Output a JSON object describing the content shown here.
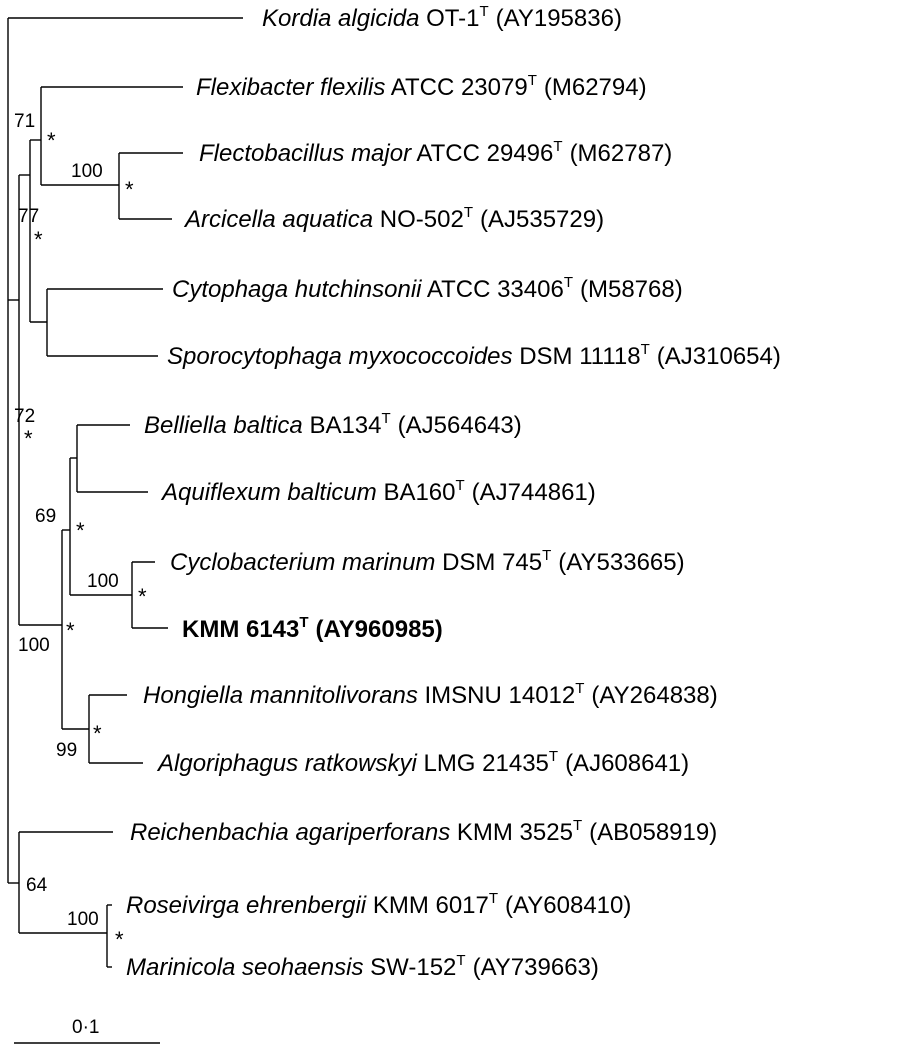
{
  "taxa": [
    {
      "name": "Kordia algicida",
      "strain": "OT-1",
      "type": "T",
      "accession": "(AY195836)"
    },
    {
      "name": "Flexibacter flexilis",
      "strain": "ATCC 23079",
      "type": "T",
      "accession": "(M62794)"
    },
    {
      "name": "Flectobacillus major",
      "strain": "ATCC 29496",
      "type": "T",
      "accession": "(M62787)"
    },
    {
      "name": "Arcicella aquatica",
      "strain": "NO-502",
      "type": "T",
      "accession": "(AJ535729)"
    },
    {
      "name": "Cytophaga hutchinsonii",
      "strain": "ATCC 33406",
      "type": "T",
      "accession": "(M58768)"
    },
    {
      "name": "Sporocytophaga myxococcoides",
      "strain": "DSM 11118",
      "type": "T",
      "accession": "(AJ310654)"
    },
    {
      "name": "Belliella baltica",
      "strain": "BA134",
      "type": "T",
      "accession": "(AJ564643)"
    },
    {
      "name": "Aquiflexum balticum",
      "strain": "BA160",
      "type": "T",
      "accession": "(AJ744861)"
    },
    {
      "name": "Cyclobacterium marinum",
      "strain": "DSM 745",
      "type": "T",
      "accession": "(AY533665)"
    },
    {
      "name": "",
      "strain": "KMM 6143",
      "type": "T",
      "accession": "(AY960985)",
      "bold": true
    },
    {
      "name": "Hongiella mannitolivorans",
      "strain": "IMSNU 14012",
      "type": "T",
      "accession": "(AY264838)"
    },
    {
      "name": "Algoriphagus ratkowskyi",
      "strain": "LMG 21435",
      "type": "T",
      "accession": "(AJ608641)"
    },
    {
      "name": "Reichenbachia agariperforans",
      "strain": "KMM 3525",
      "type": "T",
      "accession": "(AB058919)"
    },
    {
      "name": "Roseivirga ehrenbergii",
      "strain": "KMM 6017",
      "type": "T",
      "accession": "(AY608410)"
    },
    {
      "name": "Marinicola seohaensis",
      "strain": "SW-152",
      "type": "T",
      "accession": "(AY739663)"
    }
  ],
  "bootstrap": [
    "71",
    "100",
    "77",
    "72",
    "69",
    "100",
    "100",
    "99",
    "64",
    "100"
  ],
  "star_symbol": "*",
  "scale_bar": {
    "label": "0·1"
  }
}
